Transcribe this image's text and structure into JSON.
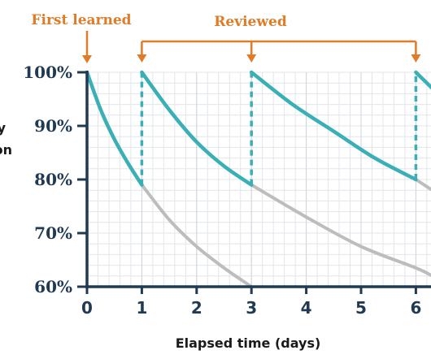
{
  "chart_data": {
    "type": "line",
    "xlabel": "Elapsed time (days)",
    "ylabel_fragment_top": "y",
    "ylabel_fragment_bottom": "on",
    "x_ticks": [
      "0",
      "1",
      "2",
      "3",
      "4",
      "5",
      "6"
    ],
    "y_ticks": [
      "60%",
      "70%",
      "80%",
      "90%",
      "100%"
    ],
    "xlim": [
      0,
      6.3
    ],
    "ylim": [
      60,
      100
    ],
    "grid": true,
    "annotations": {
      "first_learned": "First learned",
      "reviewed": "Reviewed",
      "review_days": [
        1,
        3,
        6
      ]
    },
    "colors": {
      "retention": "#3aafb5",
      "decay": "#bdbdbd",
      "axis": "#1f3a52",
      "grid": "#e2e6ea",
      "annotation": "#e07b27"
    },
    "series": [
      {
        "role": "retention",
        "points": [
          [
            0,
            100
          ],
          [
            0.25,
            93
          ],
          [
            0.5,
            87.5
          ],
          [
            0.75,
            83
          ],
          [
            1,
            79
          ]
        ]
      },
      {
        "role": "retention",
        "points": [
          [
            1,
            100
          ],
          [
            1.5,
            93
          ],
          [
            2,
            87
          ],
          [
            2.5,
            82.5
          ],
          [
            3,
            79
          ]
        ]
      },
      {
        "role": "retention",
        "points": [
          [
            3,
            100
          ],
          [
            3.75,
            94
          ],
          [
            4.5,
            89
          ],
          [
            5.25,
            84
          ],
          [
            6,
            80
          ]
        ]
      },
      {
        "role": "retention",
        "points": [
          [
            6,
            100
          ],
          [
            6.15,
            98.5
          ],
          [
            6.3,
            97
          ]
        ]
      },
      {
        "role": "decay",
        "points": [
          [
            1,
            79
          ],
          [
            1.5,
            72.5
          ],
          [
            2,
            67.5
          ],
          [
            2.5,
            63.5
          ],
          [
            3,
            60
          ]
        ]
      },
      {
        "role": "decay",
        "points": [
          [
            3,
            79
          ],
          [
            4,
            73
          ],
          [
            5,
            67.5
          ],
          [
            6,
            63.5
          ],
          [
            6.3,
            62
          ]
        ]
      },
      {
        "role": "decay",
        "points": [
          [
            6,
            80
          ],
          [
            6.3,
            78
          ]
        ]
      },
      {
        "role": "review",
        "points": [
          [
            1,
            79
          ],
          [
            1,
            100
          ]
        ]
      },
      {
        "role": "review",
        "points": [
          [
            3,
            79
          ],
          [
            3,
            100
          ]
        ]
      },
      {
        "role": "review",
        "points": [
          [
            6,
            80
          ],
          [
            6,
            100
          ]
        ]
      }
    ]
  }
}
